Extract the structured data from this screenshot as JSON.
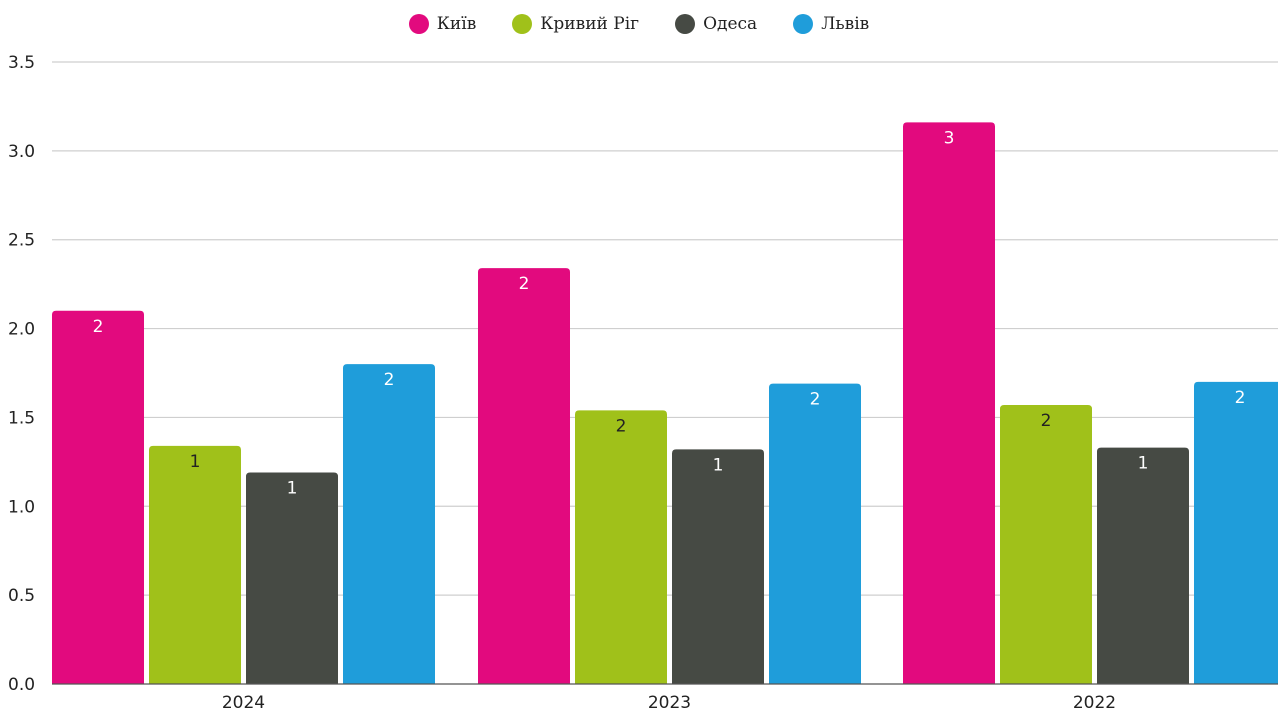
{
  "chart_data": {
    "type": "bar",
    "categories": [
      "2024",
      "2023",
      "2022"
    ],
    "series": [
      {
        "name": "Київ",
        "color": "#E20A7E",
        "values": [
          2.1,
          2.34,
          3.16
        ],
        "labels": [
          "2",
          "2",
          "3"
        ],
        "label_color": "#ffffff"
      },
      {
        "name": "Кривий Ріг",
        "color": "#A0C11A",
        "values": [
          1.34,
          1.54,
          1.57
        ],
        "labels": [
          "1",
          "2",
          "2"
        ],
        "label_color": "#222222"
      },
      {
        "name": "Одеса",
        "color": "#464A44",
        "values": [
          1.19,
          1.32,
          1.33
        ],
        "labels": [
          "1",
          "1",
          "1"
        ],
        "label_color": "#ffffff"
      },
      {
        "name": "Львів",
        "color": "#1F9DDA",
        "values": [
          1.8,
          1.69,
          1.7
        ],
        "labels": [
          "2",
          "2",
          "2"
        ],
        "label_color": "#ffffff"
      }
    ],
    "y_ticks": [
      "0.0",
      "0.5",
      "1.0",
      "1.5",
      "2.0",
      "2.5",
      "3.0",
      "3.5"
    ],
    "ylim": [
      0,
      3.5
    ],
    "grid": true,
    "legend_position": "top-center"
  }
}
